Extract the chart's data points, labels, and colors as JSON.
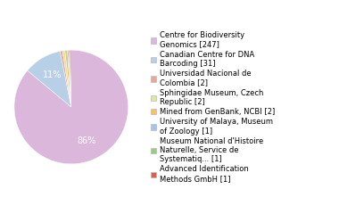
{
  "labels": [
    "Centre for Biodiversity\nGenomics [247]",
    "Canadian Centre for DNA\nBarcoding [31]",
    "Universidad Nacional de\nColombia [2]",
    "Sphingidae Museum, Czech\nRepublic [2]",
    "Mined from GenBank, NCBI [2]",
    "University of Malaya, Museum\nof Zoology [1]",
    "Museum National d'Histoire\nNaturelle, Service de\nSystematiq... [1]",
    "Advanced Identification\nMethods GmbH [1]"
  ],
  "values": [
    247,
    31,
    2,
    2,
    2,
    1,
    1,
    1
  ],
  "colors": [
    "#dbb8db",
    "#b8cfe8",
    "#e8a898",
    "#d8e8a0",
    "#f4c070",
    "#a8c4e8",
    "#98cc80",
    "#d86050"
  ],
  "background_color": "#ffffff",
  "startangle": 90,
  "pct_color": "white",
  "pct_fontsize": 7
}
